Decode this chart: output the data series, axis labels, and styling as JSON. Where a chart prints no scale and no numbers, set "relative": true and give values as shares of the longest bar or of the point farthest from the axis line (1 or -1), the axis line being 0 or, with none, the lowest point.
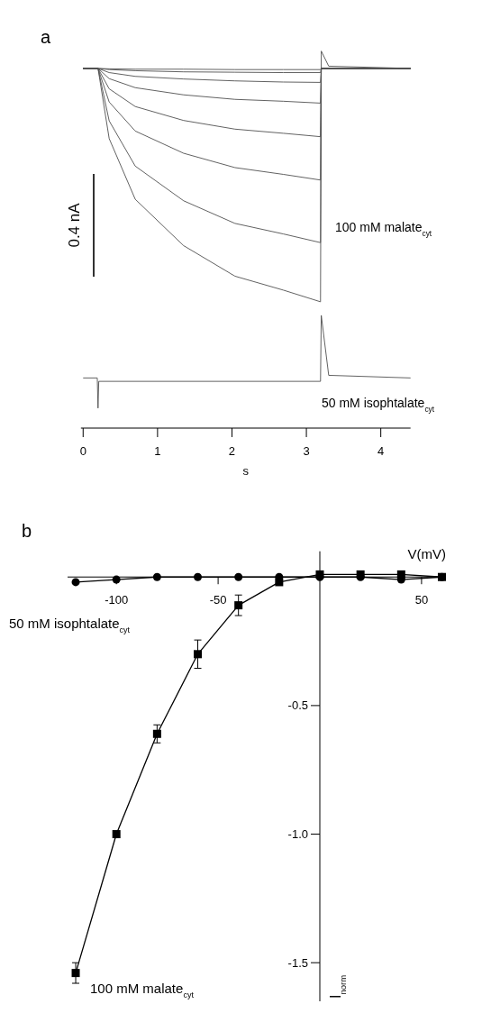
{
  "chart_data": [
    {
      "type": "line",
      "title": "a",
      "xlabel": "s",
      "relative": true,
      "xlim": [
        -0.03,
        4.4
      ],
      "xticks": [
        0,
        1,
        2,
        3,
        4
      ],
      "annotations": [
        "0.4 nA",
        "100 mM malate$_{cyt}$",
        "50 mM isophtalate$_{cyt}$"
      ],
      "series": [
        {
          "color": "#505050",
          "x": [
            0,
            0.2,
            0.35,
            0.7,
            1.35,
            2.04,
            2.69,
            3.19,
            3.2,
            4.4
          ],
          "values": [
            0.954,
            0.954,
            0.953,
            0.952,
            0.952,
            0.951,
            0.951,
            0.951,
            0.954,
            0.954
          ]
        },
        {
          "color": "#505050",
          "x": [
            0,
            0.2,
            0.35,
            0.7,
            1.35,
            2.04,
            2.69,
            3.19,
            3.2,
            4.4
          ],
          "values": [
            0.954,
            0.954,
            0.951,
            0.948,
            0.945,
            0.944,
            0.943,
            0.943,
            0.954,
            0.954
          ]
        },
        {
          "color": "#505050",
          "x": [
            0,
            0.2,
            0.35,
            0.7,
            1.35,
            2.04,
            2.69,
            3.19,
            3.2,
            4.4
          ],
          "values": [
            0.954,
            0.954,
            0.943,
            0.933,
            0.926,
            0.921,
            0.918,
            0.917,
            0.954,
            0.954
          ]
        },
        {
          "color": "#505050",
          "x": [
            0,
            0.2,
            0.35,
            0.7,
            1.35,
            2.04,
            2.69,
            3.19,
            3.2,
            4.4
          ],
          "values": [
            0.954,
            0.954,
            0.927,
            0.903,
            0.884,
            0.872,
            0.867,
            0.862,
            0.954,
            0.954
          ]
        },
        {
          "color": "#505050",
          "x": [
            0,
            0.2,
            0.35,
            0.7,
            1.35,
            2.04,
            2.69,
            3.19,
            3.2,
            4.4
          ],
          "values": [
            0.954,
            0.954,
            0.9,
            0.853,
            0.816,
            0.793,
            0.782,
            0.773,
            0.954,
            0.954
          ]
        },
        {
          "color": "#505050",
          "x": [
            0,
            0.2,
            0.35,
            0.7,
            1.35,
            2.04,
            2.69,
            3.19,
            3.2,
            4.4
          ],
          "values": [
            0.954,
            0.954,
            0.865,
            0.788,
            0.729,
            0.691,
            0.673,
            0.658,
            0.954,
            0.954
          ]
        },
        {
          "color": "#505050",
          "x": [
            0,
            0.2,
            0.35,
            0.7,
            1.35,
            2.04,
            2.69,
            3.19,
            3.2,
            4.4
          ],
          "values": [
            0.954,
            0.954,
            0.815,
            0.695,
            0.603,
            0.543,
            0.515,
            0.492,
            0.954,
            0.954
          ]
        },
        {
          "color": "#505050",
          "x": [
            0,
            0.2,
            0.35,
            0.7,
            1.35,
            2.04,
            2.69,
            3.19,
            3.2,
            3.3,
            4.4
          ],
          "values": [
            0.954,
            0.954,
            0.768,
            0.607,
            0.484,
            0.403,
            0.366,
            0.335,
            1.0,
            0.96,
            0.954
          ]
        },
        {
          "color": "#505050",
          "x": [
            0,
            0.19,
            0.2,
            0.21,
            3.19,
            3.2,
            3.3,
            4.4
          ],
          "values": [
            0.133,
            0.133,
            0.053,
            0.124,
            0.124,
            0.299,
            0.14,
            0.133
          ]
        }
      ]
    },
    {
      "type": "line",
      "title": "b",
      "xlabel": "V(mV)",
      "ylabel": "I$_{norm}$",
      "xlim": [
        -124,
        62
      ],
      "ylim": [
        -1.65,
        0.1
      ],
      "xticks": [
        -100,
        -50,
        50
      ],
      "yticks": [
        -0.5,
        {
          "value": -1,
          "label": "-1.0"
        },
        -1.5
      ],
      "series": [
        {
          "name": "100 mM malate$_{cyt}$",
          "color": "#000000",
          "marker": "square",
          "x": [
            -120,
            -100,
            -80,
            -60,
            -40,
            -20,
            0,
            20,
            40,
            60
          ],
          "values": [
            -1.54,
            -1.0,
            -0.61,
            -0.3,
            -0.11,
            -0.02,
            0.01,
            0.01,
            0.01,
            0.0
          ],
          "errors": [
            0.04,
            null,
            0.035,
            0.055,
            0.04,
            null,
            null,
            null,
            null,
            null
          ]
        },
        {
          "name": "50 mM isophtalate$_{cyt}$",
          "color": "#000000",
          "marker": "circle",
          "x": [
            -120,
            -100,
            -80,
            -60,
            -40,
            -20,
            0,
            20,
            40,
            60
          ],
          "values": [
            -0.02,
            -0.01,
            0.0,
            0.0,
            0.0,
            0.0,
            0.0,
            0.0,
            -0.01,
            0.0
          ]
        }
      ]
    }
  ]
}
